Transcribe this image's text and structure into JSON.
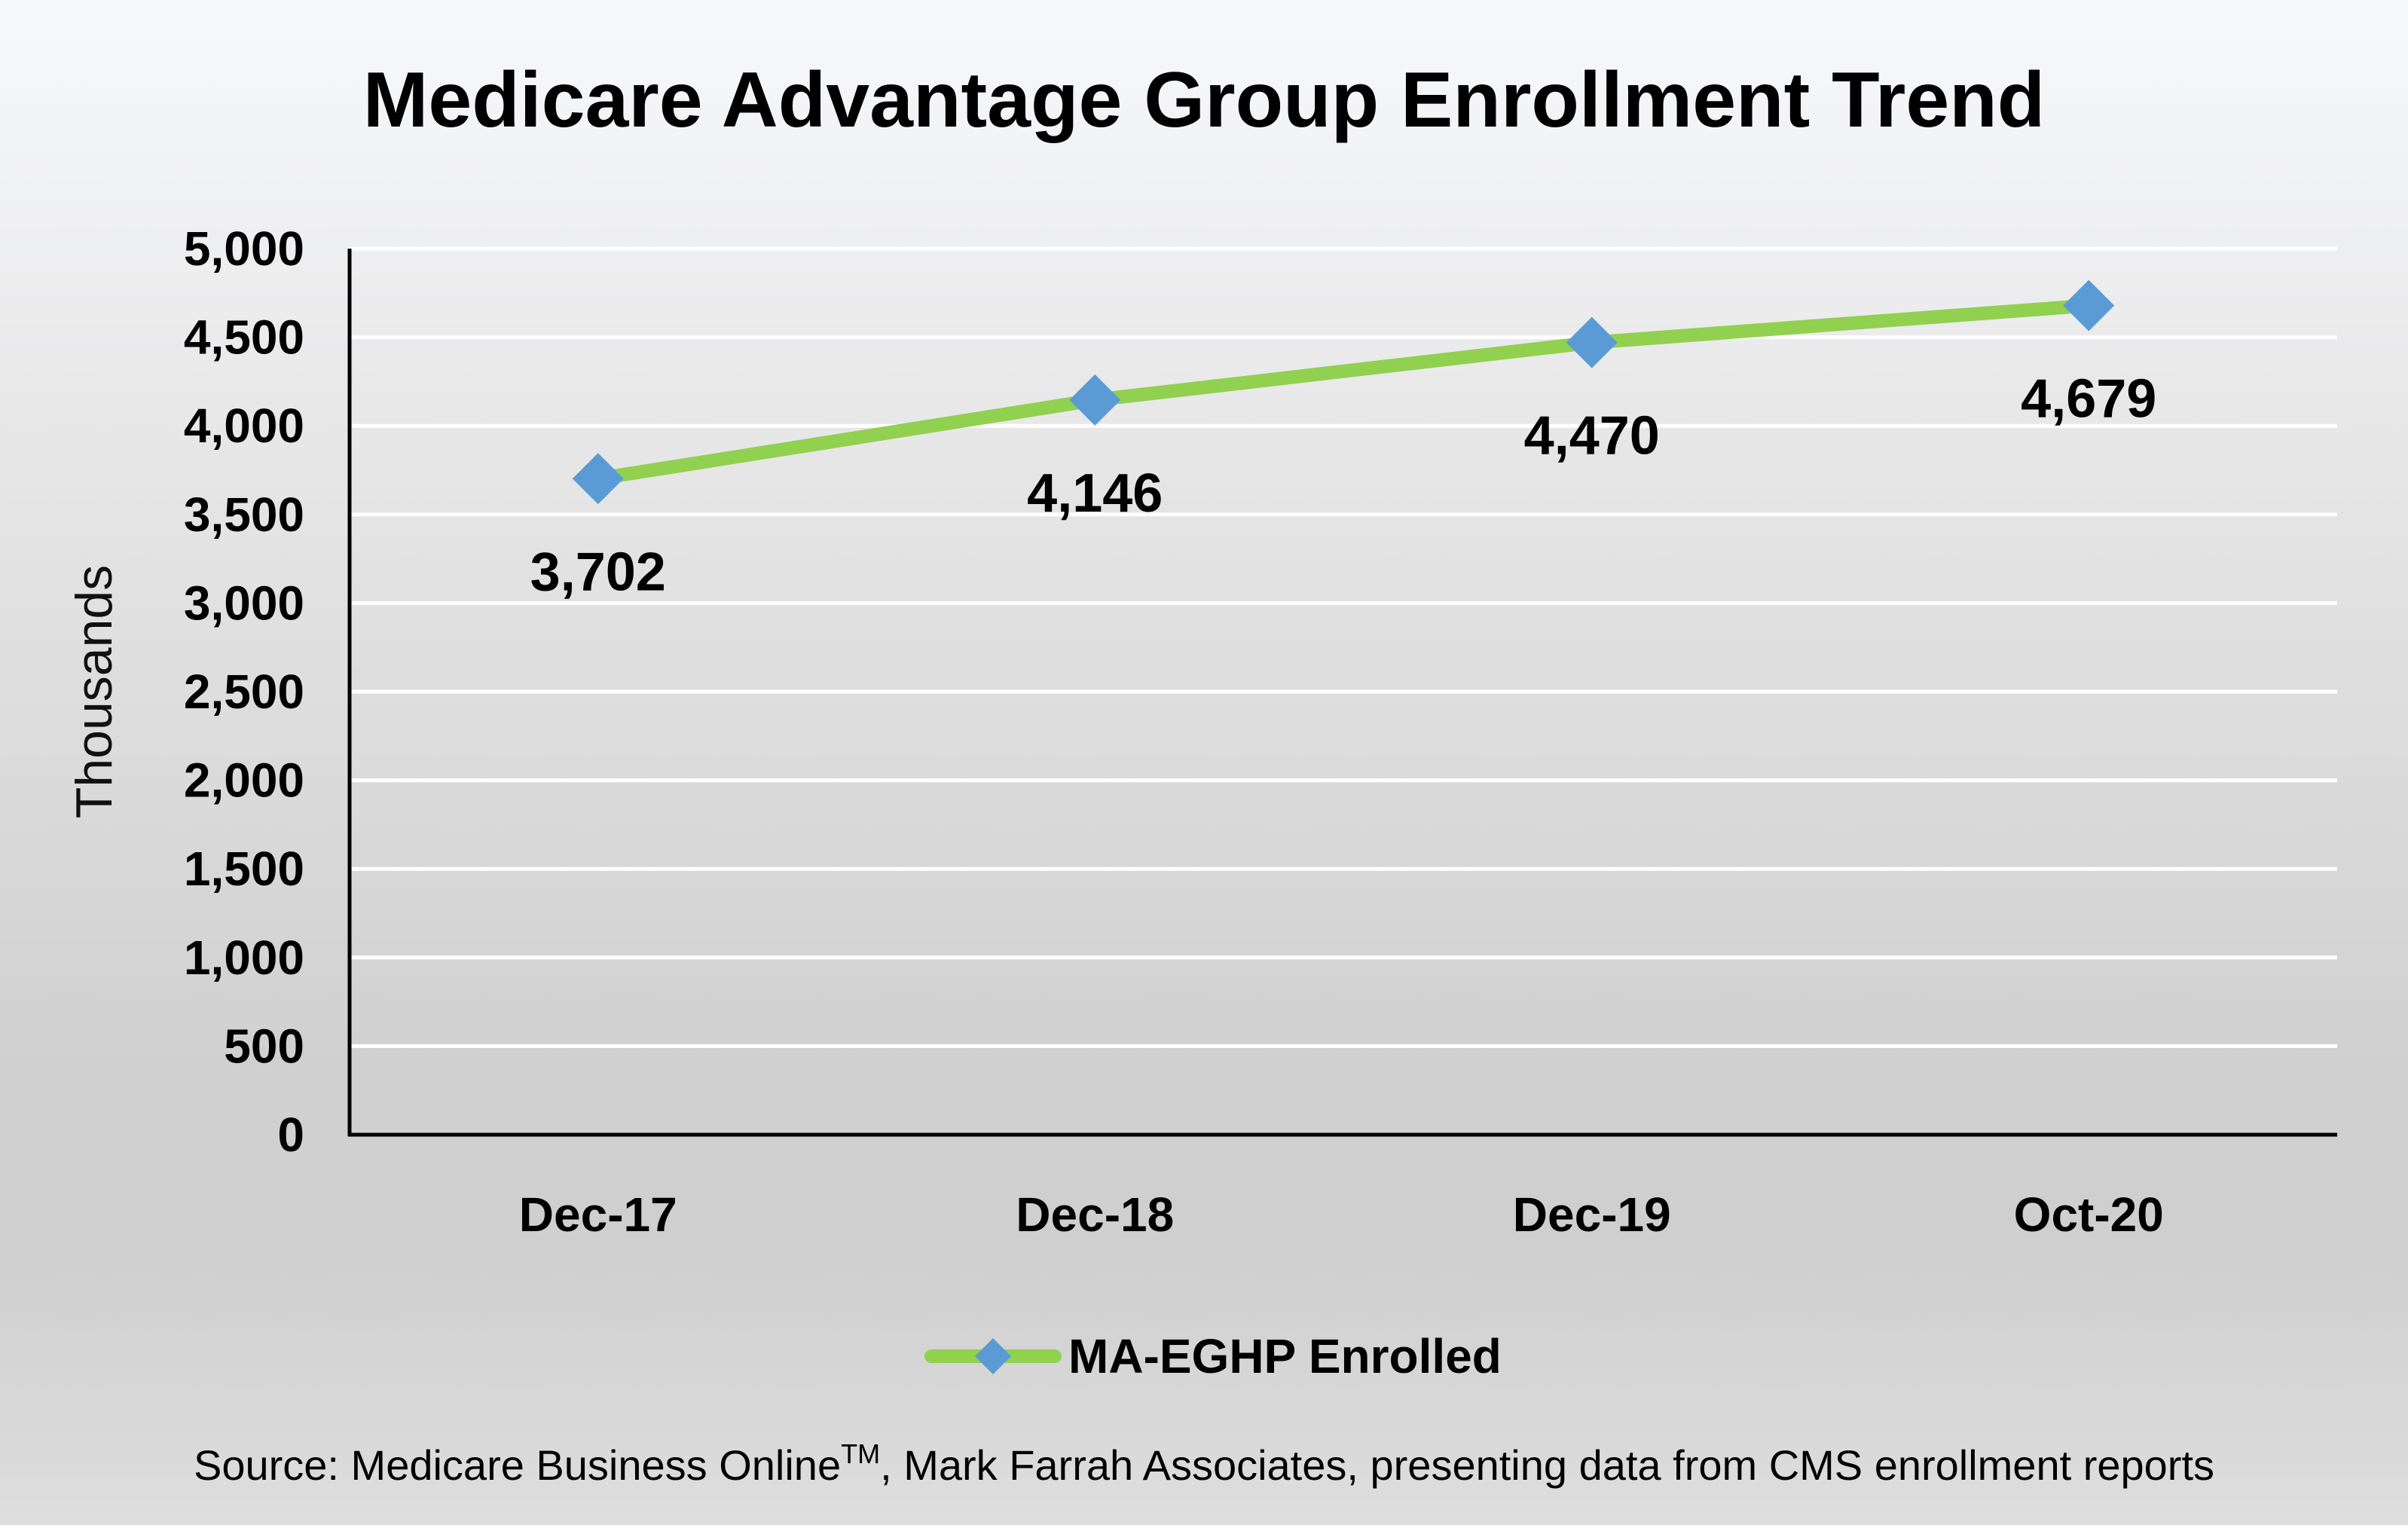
{
  "chart_data": {
    "type": "line",
    "title": "Medicare Advantage Group Enrollment Trend",
    "xlabel": "",
    "ylabel": "Thousands",
    "categories": [
      "Dec-17",
      "Dec-18",
      "Dec-19",
      "Oct-20"
    ],
    "series": [
      {
        "name": "MA-EGHP Enrolled",
        "values": [
          3702,
          4146,
          4470,
          4679
        ],
        "data_labels": [
          "3,702",
          "4,146",
          "4,470",
          "4,679"
        ],
        "line_color": "#92d050",
        "marker_color": "#5b9bd5",
        "marker": "diamond"
      }
    ],
    "ylim": [
      0,
      5000
    ],
    "yticks": [
      0,
      500,
      1000,
      1500,
      2000,
      2500,
      3000,
      3500,
      4000,
      4500,
      5000
    ],
    "ytick_labels": [
      "0",
      "500",
      "1,000",
      "1,500",
      "2,000",
      "2,500",
      "3,000",
      "3,500",
      "4,000",
      "4,500",
      "5,000"
    ],
    "grid": true,
    "grid_color": "#ffffff",
    "legend": "bottom",
    "source": {
      "text_before": "Source: Medicare Business Online",
      "superscript": "TM",
      "text_after": ", Mark Farrah Associates, presenting data from CMS enrollment reports"
    }
  }
}
